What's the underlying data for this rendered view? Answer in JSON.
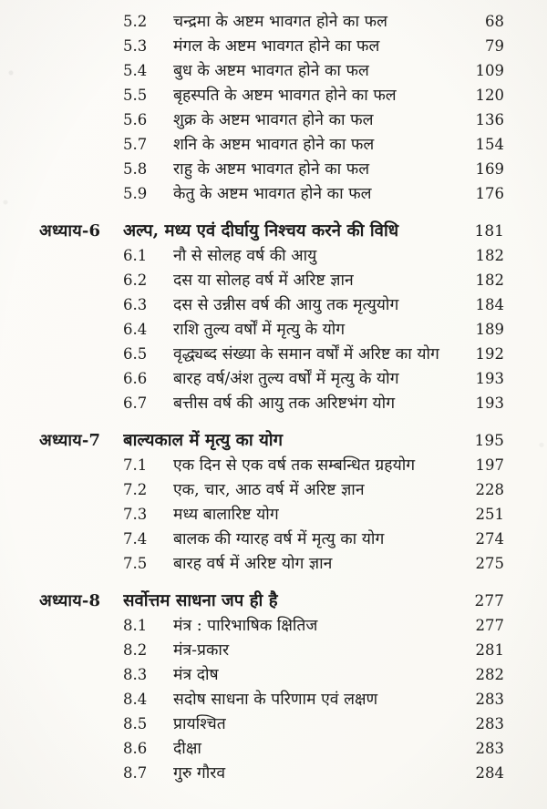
{
  "page": {
    "background": "#fbfaf6",
    "text_color": "#1c1c1c",
    "kind": "book-table-of-contents",
    "language": "Hindi"
  },
  "toc": {
    "rows": [
      {
        "type": "section",
        "num": "5.2",
        "title": "चन्द्रमा के अष्टम भावगत होने का फल",
        "page": "68"
      },
      {
        "type": "section",
        "num": "5.3",
        "title": "मंगल के अष्टम भावगत होने का फल",
        "page": "79"
      },
      {
        "type": "section",
        "num": "5.4",
        "title": "बुध के अष्टम भावगत होने का फल",
        "page": "109"
      },
      {
        "type": "section",
        "num": "5.5",
        "title": "बृहस्पति के अष्टम भावगत होने का फल",
        "page": "120"
      },
      {
        "type": "section",
        "num": "5.6",
        "title": "शुक्र के अष्टम भावगत होने का फल",
        "page": "136"
      },
      {
        "type": "section",
        "num": "5.7",
        "title": "शनि के अष्टम भावगत होने का फल",
        "page": "154"
      },
      {
        "type": "section",
        "num": "5.8",
        "title": "राहु के अष्टम भावगत होने का फल",
        "page": "169"
      },
      {
        "type": "section",
        "num": "5.9",
        "title": "केतु के अष्टम भावगत होने का फल",
        "page": "176"
      },
      {
        "type": "chapter",
        "label": "अध्याय-6",
        "title": "अल्प, मध्य एवं दीर्घायु निश्चय करने की विधि",
        "page": "181"
      },
      {
        "type": "section",
        "num": "6.1",
        "title": "नौ से सोलह वर्ष की आयु",
        "page": "182"
      },
      {
        "type": "section",
        "num": "6.2",
        "title": "दस या सोलह वर्ष में अरिष्ट ज्ञान",
        "page": "182"
      },
      {
        "type": "section",
        "num": "6.3",
        "title": "दस से उन्नीस वर्ष की आयु तक मृत्युयोग",
        "page": "184"
      },
      {
        "type": "section",
        "num": "6.4",
        "title": "राशि तुल्य वर्षों में मृत्यु के योग",
        "page": "189"
      },
      {
        "type": "section",
        "num": "6.5",
        "title": "वृद्ध्यब्द संख्या के समान वर्षों में अरिष्ट का योग",
        "page": "192"
      },
      {
        "type": "section",
        "num": "6.6",
        "title": "बारह वर्ष/अंश तुल्य वर्षों में मृत्यु के योग",
        "page": "193"
      },
      {
        "type": "section",
        "num": "6.7",
        "title": "बत्तीस वर्ष की आयु तक अरिष्टभंग योग",
        "page": "193"
      },
      {
        "type": "chapter",
        "label": "अध्याय-7",
        "title": "बाल्यकाल में मृत्यु का योग",
        "page": "195"
      },
      {
        "type": "section",
        "num": "7.1",
        "title": "एक दिन से एक वर्ष तक सम्बन्धित ग्रहयोग",
        "page": "197"
      },
      {
        "type": "section",
        "num": "7.2",
        "title": "एक, चार, आठ वर्ष में अरिष्ट ज्ञान",
        "page": "228"
      },
      {
        "type": "section",
        "num": "7.3",
        "title": "मध्य बालारिष्ट योग",
        "page": "251"
      },
      {
        "type": "section",
        "num": "7.4",
        "title": "बालक की ग्यारह वर्ष में मृत्यु का योग",
        "page": "274"
      },
      {
        "type": "section",
        "num": "7.5",
        "title": "बारह वर्ष में अरिष्ट योग ज्ञान",
        "page": "275"
      },
      {
        "type": "chapter",
        "label": "अध्याय-8",
        "title": "सर्वोत्तम साधना जप ही है",
        "page": "277"
      },
      {
        "type": "section",
        "num": "8.1",
        "title": "मंत्र : पारिभाषिक क्षितिज",
        "page": "277"
      },
      {
        "type": "section",
        "num": "8.2",
        "title": "मंत्र-प्रकार",
        "page": "281"
      },
      {
        "type": "section",
        "num": "8.3",
        "title": "मंत्र दोष",
        "page": "282"
      },
      {
        "type": "section",
        "num": "8.4",
        "title": "सदोष साधना के परिणाम एवं लक्षण",
        "page": "283"
      },
      {
        "type": "section",
        "num": "8.5",
        "title": "प्रायश्चित",
        "page": "283"
      },
      {
        "type": "section",
        "num": "8.6",
        "title": "दीक्षा",
        "page": "283"
      },
      {
        "type": "section",
        "num": "8.7",
        "title": "गुरु गौरव",
        "page": "284"
      }
    ]
  }
}
